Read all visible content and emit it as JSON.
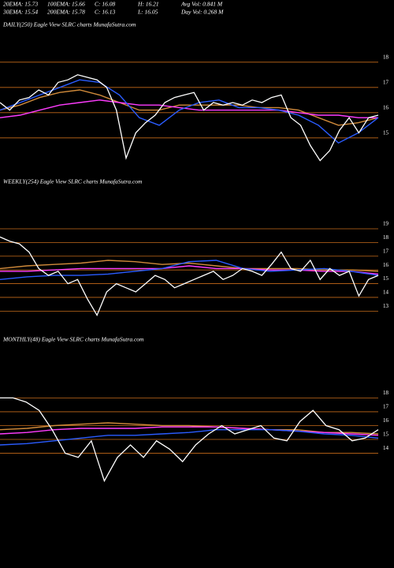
{
  "header": {
    "stats": [
      [
        "20EMA: 15.73",
        "100EMA: 15.66",
        "C: 16.08",
        "H: 16.21",
        "Avg Vol: 0.841 M"
      ],
      [
        "30EMA: 15.54",
        "200EMA: 15.78",
        "C: 16.13",
        "L: 16.05",
        "Day Vol: 0.268  M"
      ]
    ]
  },
  "chart_data": [
    {
      "type": "line",
      "title": "DAILY(250) Eagle  View  SLRC charts MunafaSutra.com",
      "ylim": [
        13.9,
        18.9
      ],
      "yticks": [
        15,
        16,
        17,
        18
      ],
      "grid": true,
      "grid_color": "#c46a1a",
      "series": [
        {
          "color": "#d08a3a",
          "values": [
            16.1,
            16.3,
            16.6,
            16.8,
            16.9,
            16.7,
            16.4,
            16.1,
            16.1,
            16.3,
            16.3,
            16.3,
            16.3,
            16.2,
            16.2,
            16.1,
            15.8,
            15.5,
            15.6,
            15.8
          ]
        },
        {
          "color": "#ff3cff",
          "values": [
            15.8,
            15.9,
            16.1,
            16.3,
            16.4,
            16.5,
            16.4,
            16.3,
            16.3,
            16.2,
            16.1,
            16.1,
            16.1,
            16.1,
            16.1,
            16.0,
            15.9,
            15.9,
            15.8,
            15.8
          ]
        },
        {
          "color": "#2a5cff",
          "values": [
            16.1,
            16.4,
            16.7,
            17.0,
            17.3,
            17.2,
            16.7,
            15.8,
            15.5,
            16.1,
            16.4,
            16.5,
            16.2,
            16.2,
            16.1,
            15.9,
            15.5,
            14.8,
            15.2,
            15.8
          ]
        },
        {
          "color": "#ffffff",
          "values": [
            16.4,
            16.1,
            16.5,
            16.6,
            16.9,
            16.7,
            17.2,
            17.3,
            17.5,
            17.4,
            17.3,
            17.0,
            16.1,
            14.2,
            15.2,
            15.6,
            15.9,
            16.4,
            16.6,
            16.7,
            16.8,
            16.1,
            16.4,
            16.3,
            16.4,
            16.3,
            16.5,
            16.4,
            16.6,
            16.7,
            15.8,
            15.5,
            14.7,
            14.1,
            14.5,
            15.3,
            15.8,
            15.2,
            15.8,
            15.9
          ]
        }
      ]
    },
    {
      "type": "line",
      "title": "WEEKLY(254) Eagle  View  SLRC charts MunafaSutra.com",
      "ylim": [
        12.1,
        21.3
      ],
      "yticks": [
        13,
        14,
        15,
        16,
        17,
        18,
        19
      ],
      "grid": true,
      "grid_color": "#c46a1a",
      "series": [
        {
          "color": "#d08a3a",
          "values": [
            16.1,
            16.3,
            16.4,
            16.5,
            16.7,
            16.6,
            16.4,
            16.5,
            16.3,
            16.1,
            16.1,
            16.1,
            16.0,
            16.0,
            15.9
          ]
        },
        {
          "color": "#ff3cff",
          "values": [
            15.9,
            15.9,
            16.0,
            16.1,
            16.1,
            16.1,
            16.1,
            16.3,
            16.1,
            16.1,
            16.0,
            16.0,
            15.9,
            15.9,
            15.7
          ]
        },
        {
          "color": "#2a5cff",
          "values": [
            15.3,
            15.5,
            15.6,
            15.6,
            15.7,
            15.9,
            16.1,
            16.6,
            16.7,
            16.1,
            15.9,
            16.0,
            16.1,
            15.9,
            15.6
          ]
        },
        {
          "color": "#ffffff",
          "values": [
            18.4,
            18.1,
            17.9,
            17.3,
            16.1,
            15.6,
            15.9,
            15.0,
            15.3,
            13.9,
            12.7,
            14.4,
            15.0,
            14.7,
            14.4,
            15.0,
            15.6,
            15.3,
            14.7,
            15.0,
            15.3,
            15.6,
            15.9,
            15.3,
            15.6,
            16.1,
            15.9,
            15.6,
            16.4,
            17.3,
            16.1,
            15.9,
            16.7,
            15.3,
            16.1,
            15.6,
            15.9,
            14.1,
            15.3,
            15.6
          ]
        }
      ]
    },
    {
      "type": "line",
      "title": "MONTHLY(48) Eagle  View  SLRC charts MunafaSutra.com",
      "ylim": [
        9.7,
        21.1
      ],
      "yticks": [
        14,
        15,
        16,
        17,
        18
      ],
      "grid": true,
      "grid_color": "#c46a1a",
      "series": [
        {
          "color": "#d08a3a",
          "values": [
            15.7,
            15.8,
            16.0,
            16.1,
            16.2,
            16.1,
            16.0,
            16.0,
            15.9,
            15.8,
            15.7,
            15.7,
            15.5,
            15.5,
            15.4
          ]
        },
        {
          "color": "#ff3cff",
          "values": [
            15.4,
            15.5,
            15.7,
            15.8,
            15.8,
            15.8,
            15.9,
            15.9,
            15.9,
            15.8,
            15.7,
            15.6,
            15.5,
            15.4,
            15.3
          ]
        },
        {
          "color": "#2a5cff",
          "values": [
            14.6,
            14.7,
            14.9,
            15.1,
            15.3,
            15.3,
            15.4,
            15.5,
            15.7,
            15.7,
            15.7,
            15.6,
            15.4,
            15.3,
            15.1
          ]
        },
        {
          "color": "#ffffff",
          "values": [
            18.0,
            18.0,
            17.7,
            17.1,
            15.7,
            14.0,
            13.7,
            14.9,
            12.0,
            13.7,
            14.6,
            13.7,
            14.9,
            14.3,
            13.4,
            14.6,
            15.4,
            16.0,
            15.4,
            15.7,
            16.0,
            15.1,
            14.9,
            16.3,
            17.1,
            16.0,
            15.7,
            14.9,
            15.1,
            15.7
          ]
        }
      ]
    }
  ]
}
